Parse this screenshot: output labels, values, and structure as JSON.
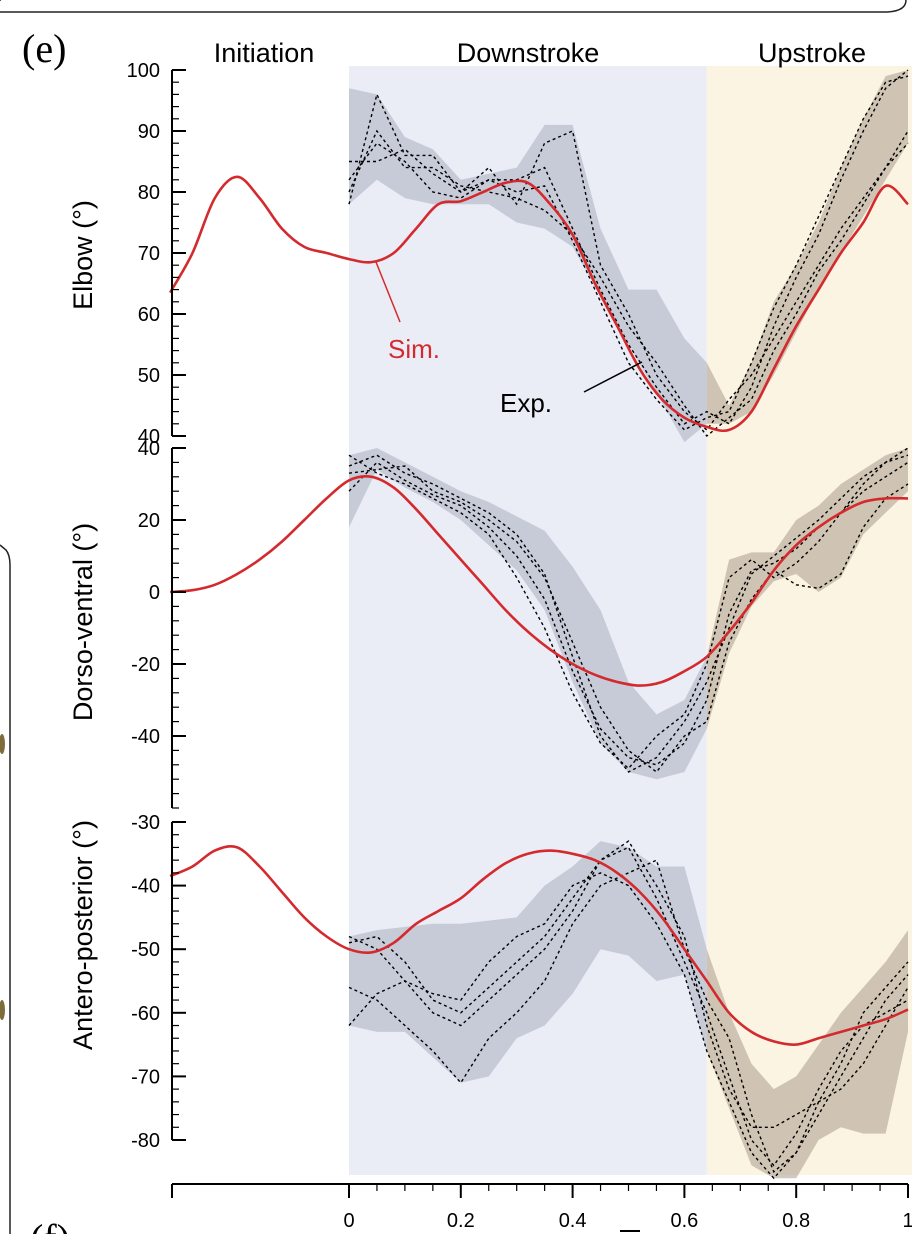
{
  "panel_labels": {
    "main": "(e)",
    "next": "(f)"
  },
  "phases": [
    {
      "label": "Initiation",
      "color": "#ffffff"
    },
    {
      "label": "Downstroke",
      "color": "#eaedf6"
    },
    {
      "label": "Upstroke",
      "color": "#fcf4e3"
    }
  ],
  "phase_bounds": [
    0,
    0.64,
    1.0
  ],
  "colors": {
    "sim": "#d42a2e",
    "exp_band": "#a9aebf",
    "exp_band_upstroke": "#a99c8d",
    "exp_line": "#000000"
  },
  "annotations": {
    "sim_label": "Sim.",
    "exp_label": "Exp."
  },
  "x_axis": {
    "ticks": [
      "0",
      "0.2",
      "0.4",
      "0.6",
      "0.8",
      "1"
    ],
    "xlim": [
      -0.32,
      1.0
    ]
  },
  "chart_data": [
    {
      "type": "line",
      "ylabel": "Elbow (°)",
      "ylim": [
        40,
        100
      ],
      "yticks": [
        40,
        50,
        60,
        70,
        80,
        90,
        100
      ],
      "series": [
        {
          "name": "Sim.",
          "x": [
            -0.32,
            -0.28,
            -0.24,
            -0.2,
            -0.16,
            -0.12,
            -0.08,
            -0.04,
            0,
            0.04,
            0.08,
            0.12,
            0.16,
            0.2,
            0.24,
            0.28,
            0.32,
            0.36,
            0.4,
            0.44,
            0.48,
            0.52,
            0.56,
            0.6,
            0.64,
            0.68,
            0.72,
            0.76,
            0.8,
            0.84,
            0.88,
            0.92,
            0.96,
            1.0
          ],
          "y": [
            63.5,
            70,
            79,
            82.5,
            79,
            74,
            71,
            70,
            69,
            68.5,
            70,
            74,
            78,
            78.5,
            80,
            81.5,
            81.5,
            78,
            73,
            65,
            58,
            51,
            46,
            43,
            41.5,
            41,
            44,
            51,
            58,
            64,
            70,
            75,
            81,
            78
          ]
        }
      ],
      "exp_band": {
        "x": [
          0,
          0.05,
          0.1,
          0.15,
          0.2,
          0.25,
          0.3,
          0.35,
          0.4,
          0.45,
          0.5,
          0.55,
          0.6,
          0.64,
          0.68,
          0.72,
          0.76,
          0.8,
          0.84,
          0.88,
          0.92,
          0.96,
          1.0
        ],
        "upper": [
          97,
          96,
          89,
          87,
          82,
          83,
          84,
          91,
          91,
          74,
          64,
          64,
          56,
          52,
          45,
          52,
          62,
          68,
          75,
          84,
          92,
          99,
          100
        ],
        "lower": [
          78,
          82,
          79,
          78,
          78,
          78,
          75,
          74,
          71,
          63,
          55,
          47,
          39,
          42,
          42,
          44,
          50,
          57,
          64,
          70,
          76,
          82,
          88
        ]
      },
      "exp_trials": [
        {
          "x": [
            0,
            0.05,
            0.1,
            0.15,
            0.2,
            0.25,
            0.3,
            0.35,
            0.4,
            0.45,
            0.5,
            0.55,
            0.6,
            0.64,
            0.68,
            0.72,
            0.76,
            0.8,
            0.84,
            0.88,
            0.92,
            0.96,
            1.0
          ],
          "y": [
            78,
            96,
            86,
            86,
            80,
            82,
            82,
            84,
            74,
            64,
            55,
            48,
            42,
            44,
            42,
            48,
            58,
            66,
            73,
            82,
            90,
            97,
            100
          ]
        },
        {
          "x": [
            0,
            0.05,
            0.1,
            0.15,
            0.2,
            0.25,
            0.3,
            0.35,
            0.4,
            0.45,
            0.5,
            0.55,
            0.6,
            0.64,
            0.68,
            0.72,
            0.76,
            0.8,
            0.84,
            0.88,
            0.92,
            0.96,
            1.0
          ],
          "y": [
            82,
            88,
            85,
            80,
            79,
            82,
            80,
            81,
            72,
            62,
            52,
            46,
            41,
            43,
            44,
            52,
            61,
            68,
            76,
            84,
            92,
            98,
            99
          ]
        },
        {
          "x": [
            0,
            0.05,
            0.1,
            0.15,
            0.2,
            0.25,
            0.3,
            0.35,
            0.4,
            0.45,
            0.5,
            0.55,
            0.6,
            0.64,
            0.68,
            0.72,
            0.76,
            0.8,
            0.84,
            0.88,
            0.92,
            0.96,
            1.0
          ],
          "y": [
            85,
            85,
            87,
            83,
            80,
            84,
            78,
            88,
            90,
            68,
            60,
            50,
            44,
            41,
            46,
            50,
            56,
            62,
            68,
            74,
            79,
            84,
            88
          ]
        },
        {
          "x": [
            0,
            0.05,
            0.1,
            0.15,
            0.2,
            0.25,
            0.3,
            0.35,
            0.4,
            0.45,
            0.5,
            0.55,
            0.6,
            0.64,
            0.68,
            0.72,
            0.76,
            0.8,
            0.84,
            0.88,
            0.92,
            0.96,
            1.0
          ],
          "y": [
            80,
            90,
            84,
            84,
            81,
            80,
            79,
            77,
            73,
            66,
            58,
            52,
            45,
            40,
            43,
            46,
            54,
            60,
            67,
            72,
            78,
            84,
            90
          ]
        }
      ]
    },
    {
      "type": "line",
      "ylabel": "Dorso-ventral (°)",
      "ylim": [
        -60,
        40
      ],
      "yticks": [
        -40,
        -20,
        0,
        20,
        40
      ],
      "series": [
        {
          "name": "Sim.",
          "x": [
            -0.32,
            -0.28,
            -0.24,
            -0.2,
            -0.16,
            -0.12,
            -0.08,
            -0.04,
            0,
            0.04,
            0.08,
            0.12,
            0.16,
            0.2,
            0.24,
            0.28,
            0.32,
            0.36,
            0.4,
            0.44,
            0.48,
            0.52,
            0.56,
            0.6,
            0.64,
            0.68,
            0.72,
            0.76,
            0.8,
            0.84,
            0.88,
            0.92,
            0.96,
            1.0
          ],
          "y": [
            0,
            0.5,
            2,
            5,
            9,
            14,
            20,
            26,
            31,
            32,
            29,
            23,
            16,
            9,
            2,
            -5,
            -11,
            -16,
            -20,
            -23,
            -25,
            -26,
            -25,
            -22,
            -18,
            -11,
            -3,
            6,
            13,
            18,
            22,
            25,
            26,
            26
          ]
        }
      ],
      "exp_band": {
        "x": [
          0,
          0.05,
          0.1,
          0.15,
          0.2,
          0.25,
          0.3,
          0.35,
          0.4,
          0.45,
          0.5,
          0.55,
          0.6,
          0.64,
          0.68,
          0.72,
          0.76,
          0.8,
          0.84,
          0.88,
          0.92,
          0.96,
          1.0
        ],
        "upper": [
          38,
          40,
          36,
          32,
          28,
          25,
          21,
          17,
          7,
          -5,
          -25,
          -34,
          -30,
          -18,
          9,
          11,
          11,
          20,
          24,
          30,
          34,
          38,
          40
        ],
        "lower": [
          18,
          34,
          29,
          25,
          20,
          13,
          6,
          -5,
          -25,
          -42,
          -50,
          -52,
          -50,
          -38,
          -17,
          -4,
          3,
          5,
          0,
          4,
          16,
          22,
          28
        ]
      },
      "exp_trials": [
        {
          "x": [
            0,
            0.05,
            0.1,
            0.15,
            0.2,
            0.25,
            0.3,
            0.35,
            0.4,
            0.45,
            0.5,
            0.55,
            0.6,
            0.64,
            0.68,
            0.72,
            0.76,
            0.8,
            0.84,
            0.88,
            0.92,
            0.96,
            1.0
          ],
          "y": [
            35,
            38,
            33,
            30,
            26,
            22,
            16,
            5,
            -18,
            -40,
            -50,
            -46,
            -36,
            -25,
            -10,
            5,
            10,
            15,
            20,
            26,
            32,
            36,
            40
          ]
        },
        {
          "x": [
            0,
            0.05,
            0.1,
            0.15,
            0.2,
            0.25,
            0.3,
            0.35,
            0.4,
            0.45,
            0.5,
            0.55,
            0.6,
            0.64,
            0.68,
            0.72,
            0.76,
            0.8,
            0.84,
            0.88,
            0.92,
            0.96,
            1.0
          ],
          "y": [
            28,
            36,
            31,
            27,
            24,
            18,
            10,
            -2,
            -22,
            -38,
            -46,
            -48,
            -42,
            -30,
            -6,
            6,
            8,
            12,
            18,
            22,
            28,
            32,
            36
          ]
        },
        {
          "x": [
            0,
            0.05,
            0.1,
            0.15,
            0.2,
            0.25,
            0.3,
            0.35,
            0.4,
            0.45,
            0.5,
            0.55,
            0.6,
            0.64,
            0.68,
            0.72,
            0.76,
            0.8,
            0.84,
            0.88,
            0.92,
            0.96,
            1.0
          ],
          "y": [
            38,
            33,
            30,
            26,
            22,
            16,
            4,
            -10,
            -28,
            -42,
            -49,
            -40,
            -34,
            -20,
            4,
            9,
            4,
            8,
            14,
            22,
            30,
            36,
            38
          ]
        },
        {
          "x": [
            0,
            0.05,
            0.1,
            0.15,
            0.2,
            0.25,
            0.3,
            0.35,
            0.4,
            0.45,
            0.5,
            0.55,
            0.6,
            0.64,
            0.68,
            0.72,
            0.76,
            0.8,
            0.84,
            0.88,
            0.92,
            0.96,
            1.0
          ],
          "y": [
            33,
            34,
            35,
            28,
            25,
            20,
            14,
            4,
            -14,
            -32,
            -44,
            -50,
            -40,
            -36,
            -14,
            -2,
            6,
            2,
            1,
            5,
            18,
            26,
            30
          ]
        }
      ]
    },
    {
      "type": "line",
      "ylabel": "Antero-posterior (°)",
      "ylim": [
        -80,
        -30
      ],
      "yticks": [
        -80,
        -70,
        -60,
        -50,
        -40,
        -30
      ],
      "series": [
        {
          "name": "Sim.",
          "x": [
            -0.32,
            -0.28,
            -0.24,
            -0.2,
            -0.16,
            -0.12,
            -0.08,
            -0.04,
            0,
            0.04,
            0.08,
            0.12,
            0.16,
            0.2,
            0.24,
            0.28,
            0.32,
            0.36,
            0.4,
            0.44,
            0.48,
            0.52,
            0.56,
            0.6,
            0.64,
            0.68,
            0.72,
            0.76,
            0.8,
            0.84,
            0.88,
            0.92,
            0.96,
            1.0
          ],
          "y": [
            -38.5,
            -37,
            -34.5,
            -34,
            -37,
            -41,
            -45,
            -48,
            -50,
            -50.5,
            -49,
            -46,
            -44,
            -42,
            -39,
            -36.5,
            -35,
            -34.5,
            -35,
            -36,
            -38,
            -41,
            -45,
            -50,
            -55,
            -60,
            -63,
            -64.5,
            -65,
            -64,
            -63,
            -62,
            -61,
            -59.5
          ]
        }
      ],
      "exp_band": {
        "x": [
          0,
          0.05,
          0.1,
          0.15,
          0.2,
          0.25,
          0.3,
          0.35,
          0.4,
          0.45,
          0.5,
          0.55,
          0.6,
          0.64,
          0.68,
          0.72,
          0.76,
          0.8,
          0.84,
          0.88,
          0.92,
          0.96,
          1.0
        ],
        "upper": [
          -48,
          -47,
          -46.5,
          -46,
          -46,
          -45.5,
          -45,
          -40,
          -37,
          -33,
          -34,
          -37,
          -37,
          -50,
          -60,
          -68,
          -72,
          -70,
          -65,
          -60,
          -56,
          -52,
          -47
        ],
        "lower": [
          -62,
          -63,
          -63,
          -67,
          -71,
          -70,
          -64,
          -62,
          -57,
          -50,
          -51,
          -55,
          -54,
          -66,
          -75,
          -84,
          -86,
          -86,
          -80,
          -78,
          -79,
          -79,
          -63
        ]
      },
      "exp_trials": [
        {
          "x": [
            0,
            0.05,
            0.1,
            0.15,
            0.2,
            0.25,
            0.3,
            0.35,
            0.4,
            0.45,
            0.5,
            0.55,
            0.6,
            0.64,
            0.68,
            0.72,
            0.76,
            0.8,
            0.84,
            0.88,
            0.92,
            0.96,
            1.0
          ],
          "y": [
            -49,
            -48,
            -52,
            -58,
            -60,
            -56,
            -52,
            -48,
            -42,
            -36,
            -34,
            -42,
            -52,
            -60,
            -70,
            -80,
            -84,
            -79,
            -72,
            -66,
            -62,
            -60,
            -58
          ]
        },
        {
          "x": [
            0,
            0.05,
            0.1,
            0.15,
            0.2,
            0.25,
            0.3,
            0.35,
            0.4,
            0.45,
            0.5,
            0.55,
            0.6,
            0.64,
            0.68,
            0.72,
            0.76,
            0.8,
            0.84,
            0.88,
            0.92,
            0.96,
            1.0
          ],
          "y": [
            -56,
            -58,
            -62,
            -66,
            -71,
            -64,
            -60,
            -55,
            -46,
            -40,
            -38,
            -36,
            -50,
            -58,
            -64,
            -76,
            -85,
            -82,
            -74,
            -68,
            -60,
            -56,
            -52
          ]
        },
        {
          "x": [
            0,
            0.05,
            0.1,
            0.15,
            0.2,
            0.25,
            0.3,
            0.35,
            0.4,
            0.45,
            0.5,
            0.55,
            0.6,
            0.64,
            0.68,
            0.72,
            0.76,
            0.8,
            0.84,
            0.88,
            0.92,
            0.96,
            1.0
          ],
          "y": [
            -62,
            -57,
            -55,
            -60,
            -62,
            -58,
            -54,
            -50,
            -44,
            -36,
            -33,
            -40,
            -48,
            -62,
            -72,
            -78,
            -78,
            -76,
            -74,
            -72,
            -68,
            -62,
            -56
          ]
        },
        {
          "x": [
            0,
            0.05,
            0.1,
            0.15,
            0.2,
            0.25,
            0.3,
            0.35,
            0.4,
            0.45,
            0.5,
            0.55,
            0.6,
            0.64,
            0.68,
            0.72,
            0.76,
            0.8,
            0.84,
            0.88,
            0.92,
            0.96,
            1.0
          ],
          "y": [
            -48,
            -50,
            -55,
            -57,
            -58,
            -52,
            -48,
            -46,
            -40,
            -38,
            -40,
            -46,
            -54,
            -66,
            -74,
            -82,
            -86,
            -82,
            -76,
            -70,
            -64,
            -58,
            -54
          ]
        }
      ]
    }
  ]
}
